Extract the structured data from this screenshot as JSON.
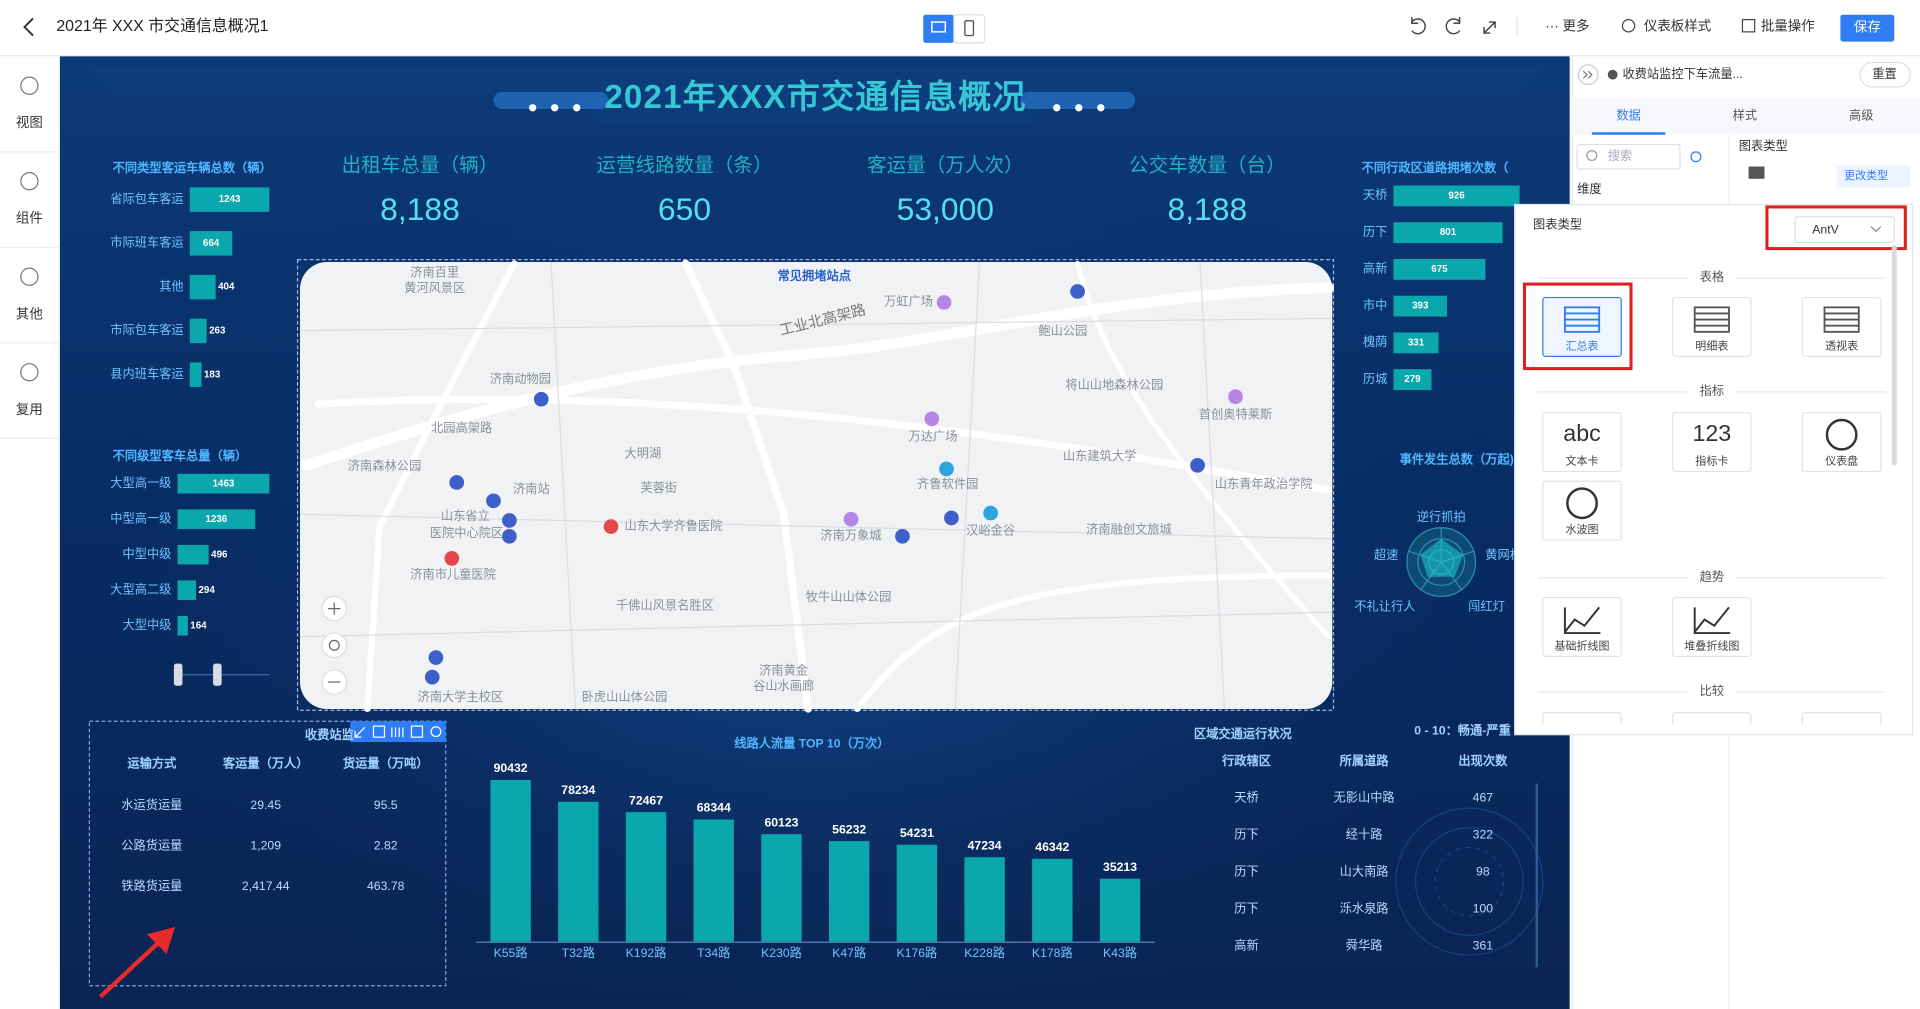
{
  "toolbar": {
    "title": "2021年 XXX 市交通信息概况1",
    "actions": [
      "更多",
      "仪表板样式",
      "批量操作"
    ],
    "save": "保存"
  },
  "sidebar": [
    "视图",
    "组件",
    "其他",
    "复用"
  ],
  "panel": {
    "breadcrumb": "收费站监控下车流量...",
    "reset": "重置",
    "tabs": [
      "数据",
      "样式",
      "高级"
    ],
    "search": "搜索",
    "dimension": "维度",
    "chart_type": "图表类型",
    "change_type": "更改类型"
  },
  "popup": {
    "title": "图表类型",
    "library": "AntV",
    "sections": [
      {
        "name": "表格",
        "items": [
          {
            "label": "汇总表"
          },
          {
            "label": "明细表"
          },
          {
            "label": "透视表"
          }
        ]
      },
      {
        "name": "指标",
        "items": [
          {
            "label": "文本卡",
            "icon": "abc"
          },
          {
            "label": "指标卡",
            "icon": "123"
          },
          {
            "label": "仪表盘"
          },
          {
            "label": "水波图"
          }
        ]
      },
      {
        "name": "趋势",
        "items": [
          {
            "label": "基础折线图"
          },
          {
            "label": "堆叠折线图"
          }
        ]
      },
      {
        "name": "比较"
      }
    ]
  },
  "dashboard": {
    "title": "2021年XXX市交通信息概况",
    "kpis": [
      {
        "label": "出租车总量（辆）",
        "value": "8,188"
      },
      {
        "label": "运营线路数量（条）",
        "value": "650"
      },
      {
        "label": "客运量（万人次）",
        "value": "53,000"
      },
      {
        "label": "公交车数量（台）",
        "value": "8,188"
      }
    ],
    "map": {
      "title": "常见拥堵站点",
      "places": [
        "济南百里",
        "黄河风景区",
        "万虹广场",
        "鲍山公园",
        "济南动物园",
        "将山山地森林公园",
        "首创奥特莱斯",
        "北园高架路",
        "万达广场",
        "济南森林公园",
        "大明湖",
        "山东建筑大学",
        "济南站",
        "芙蓉街",
        "齐鲁软件园",
        "山东青年政治学院",
        "山东省立",
        "医院中心院区",
        "山东大学齐鲁医院",
        "济南万象城",
        "汉峪金谷",
        "济南融创文旅城",
        "济南市儿童医院",
        "千佛山风景名胜区",
        "牧牛山山体公园",
        "济南黄金",
        "谷山水画廊",
        "济南大学主校区",
        "卧虎山山体公园",
        "工业北高架路"
      ]
    },
    "radar": {
      "title": "事件发生总数（万起)",
      "indicators": [
        "逆行抓拍",
        "黄网格",
        "闯红灯",
        "不礼让行人",
        "超速"
      ]
    },
    "toll_table": {
      "title": "收费站监",
      "header": [
        "运输方式",
        "客运量（万人）",
        "货运量（万吨）"
      ],
      "rows": [
        [
          "水运货运量",
          "29.45",
          "95.5"
        ],
        [
          "公路货运量",
          "1,209",
          "2.82"
        ],
        [
          "铁路货运量",
          "2,417.44",
          "463.78"
        ]
      ]
    },
    "region_table": {
      "title": "区域交通运行状况",
      "legend": "0 - 10：畅通-严重",
      "header": [
        "行政辖区",
        "所属道路",
        "出现次数"
      ],
      "rows": [
        [
          "天桥",
          "无影山中路",
          "467"
        ],
        [
          "历下",
          "经十路",
          "322"
        ],
        [
          "历下",
          "山大南路",
          "98"
        ],
        [
          "历下",
          "泺水泉路",
          "100"
        ],
        [
          "高新",
          "舜华路",
          "361"
        ]
      ]
    }
  },
  "chart_data": [
    {
      "type": "bar",
      "horizontal": true,
      "title": "不同类型客运车辆总数（辆）",
      "color": "#0aa7ad",
      "categories": [
        "省际包车客运",
        "市际班车客运",
        "其他",
        "市际包车客运",
        "县内班车客运"
      ],
      "values": [
        1243,
        664,
        404,
        263,
        183
      ]
    },
    {
      "type": "bar",
      "horizontal": true,
      "title": "不同级型客车总量（辆）",
      "color": "#0aa7ad",
      "categories": [
        "大型高一级",
        "中型高一级",
        "中型中级",
        "大型高二级",
        "大型中级"
      ],
      "values": [
        1463,
        1236,
        496,
        294,
        164
      ]
    },
    {
      "type": "bar",
      "horizontal": true,
      "title": "不同行政区道路拥堵次数（",
      "color": "#0aa7ad",
      "categories": [
        "天桥",
        "历下",
        "高新",
        "市中",
        "槐荫",
        "历城"
      ],
      "values": [
        926,
        801,
        675,
        393,
        331,
        279
      ]
    },
    {
      "type": "bar",
      "horizontal": false,
      "title": "线路人流量 TOP 10（万次）",
      "color": "#0aa7ad",
      "categories": [
        "K55路",
        "T32路",
        "K192路",
        "T34路",
        "K230路",
        "K47路",
        "K176路",
        "K228路",
        "K178路",
        "K43路"
      ],
      "values": [
        90432,
        78234,
        72467,
        68344,
        60123,
        56232,
        54231,
        47234,
        46342,
        35213
      ]
    }
  ]
}
